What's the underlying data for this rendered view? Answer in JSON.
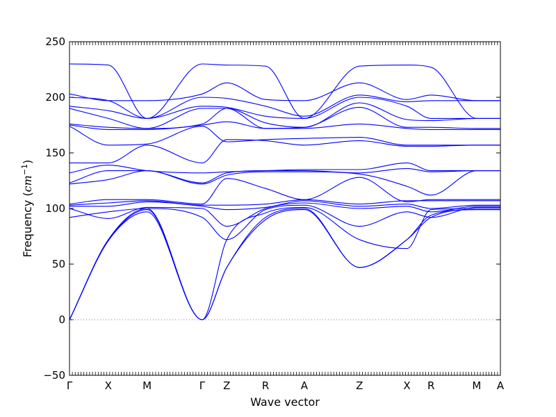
{
  "chart_data": {
    "type": "line",
    "title": "",
    "xlabel": "Wave vector",
    "ylabel_prefix": "Frequency (",
    "ylabel_unit_base": "cm",
    "ylabel_unit_exp": "−1",
    "ylabel_suffix": ")",
    "ylim": [
      -50,
      250
    ],
    "yticks": [
      -50,
      0,
      50,
      100,
      150,
      200,
      250
    ],
    "ytick_labels": [
      "−50",
      "0",
      "50",
      "100",
      "150",
      "200",
      "250"
    ],
    "grid": false,
    "legend": "none",
    "line_color": "#0000ff",
    "zero_line_color": "#7777aa",
    "xlim": [
      0,
      10
    ],
    "high_symmetry_points": [
      {
        "label": "Γ",
        "x": 0
      },
      {
        "label": "X",
        "x": 0.9
      },
      {
        "label": "M",
        "x": 1.8
      },
      {
        "label": "Γ",
        "x": 3.08
      },
      {
        "label": "Z",
        "x": 3.65
      },
      {
        "label": "R",
        "x": 4.55
      },
      {
        "label": "A",
        "x": 5.45
      },
      {
        "label": "Z",
        "x": 6.73
      },
      {
        "label": "X",
        "x": 7.83
      },
      {
        "label": "R",
        "x": 8.39
      },
      {
        "label": "M",
        "x": 9.45
      },
      {
        "label": "A",
        "x": 10
      }
    ],
    "band_knots_x": [
      0,
      0.9,
      1.8,
      3.08,
      3.65,
      4.55,
      5.45,
      6.73,
      7.83,
      8.39,
      9.45,
      10
    ],
    "series": [
      {
        "values": [
          0,
          71,
          97,
          0,
          47,
          90,
          99,
          47,
          72,
          92,
          99,
          99
        ]
      },
      {
        "values": [
          0,
          71,
          99,
          0,
          47,
          92,
          100,
          47,
          72,
          94,
          99,
          99
        ]
      },
      {
        "values": [
          0,
          72,
          100,
          0,
          72,
          96,
          101,
          72,
          64,
          99,
          100,
          100
        ]
      },
      {
        "values": [
          92,
          97,
          100,
          92,
          72,
          99,
          103,
          84,
          97,
          92,
          101,
          101
        ]
      },
      {
        "values": [
          100,
          91,
          101,
          100,
          84,
          100,
          105,
          100,
          102,
          97,
          102,
          102
        ]
      },
      {
        "values": [
          102,
          102,
          106,
          102,
          99,
          101,
          107,
          102,
          104,
          100,
          103,
          103
        ]
      },
      {
        "values": [
          103,
          105,
          107,
          103,
          103,
          104,
          108,
          104,
          107,
          107,
          107,
          107
        ]
      },
      {
        "values": [
          104,
          108,
          108,
          104,
          127,
          118,
          108,
          128,
          106,
          108,
          108,
          108
        ]
      },
      {
        "values": [
          122,
          126,
          134,
          122,
          130,
          133,
          133,
          131,
          120,
          112,
          134,
          134
        ]
      },
      {
        "values": [
          123,
          134,
          134,
          123,
          132,
          134,
          134,
          132,
          136,
          133,
          134,
          134
        ]
      },
      {
        "values": [
          132,
          139,
          134,
          132,
          133,
          134,
          135,
          135,
          141,
          134,
          134,
          134
        ]
      },
      {
        "values": [
          141,
          141,
          157,
          141,
          162,
          161,
          157,
          161,
          156,
          156,
          157,
          157
        ]
      },
      {
        "values": [
          174,
          157,
          158,
          174,
          160,
          162,
          163,
          164,
          157,
          157,
          157,
          157
        ]
      },
      {
        "values": [
          175,
          171,
          171,
          175,
          178,
          172,
          172,
          176,
          172,
          171,
          171,
          171
        ]
      },
      {
        "values": [
          176,
          173,
          172,
          176,
          190,
          172,
          173,
          191,
          173,
          173,
          172,
          172
        ]
      },
      {
        "values": [
          190,
          181,
          172,
          190,
          190,
          177,
          173,
          195,
          180,
          179,
          181,
          181
        ]
      },
      {
        "values": [
          192,
          188,
          181,
          192,
          191,
          183,
          181,
          200,
          192,
          181,
          181,
          181
        ]
      },
      {
        "values": [
          200,
          197,
          181,
          200,
          199,
          192,
          183,
          202,
          196,
          197,
          197,
          197
        ]
      },
      {
        "values": [
          203,
          197,
          197,
          203,
          213,
          198,
          197,
          213,
          198,
          202,
          197,
          197
        ]
      },
      {
        "values": [
          230,
          229,
          181,
          230,
          229,
          228,
          181,
          228,
          229,
          227,
          181,
          181
        ]
      }
    ]
  }
}
